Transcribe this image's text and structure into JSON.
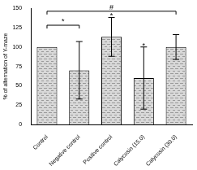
{
  "chart_data": {
    "type": "bar",
    "y_label": "% of alternation of Y-maze",
    "categories": [
      "Control",
      "Negative control",
      "Positive control",
      "Calycosin (15.0)",
      "Calycosin (30.0)"
    ],
    "values": [
      100,
      70,
      113,
      60,
      100
    ],
    "errors": [
      0,
      37,
      25,
      40,
      16
    ],
    "color": "#9a9a9a",
    "ylim": [
      0,
      150
    ],
    "yticks": [
      0,
      25,
      50,
      75,
      100,
      125,
      150
    ],
    "grid": false,
    "brackets": [
      {
        "text": "*",
        "from": "Control",
        "to": "Negative control",
        "y": 128
      },
      {
        "text": "#",
        "from": "Control",
        "to": "Calycosin (30.0)",
        "y": 146
      }
    ],
    "annotations": [
      {
        "text": "*",
        "category": "Positive control",
        "y": 140
      },
      {
        "text": "*",
        "category": "Calycosin (15.0)",
        "y": 101
      }
    ]
  }
}
